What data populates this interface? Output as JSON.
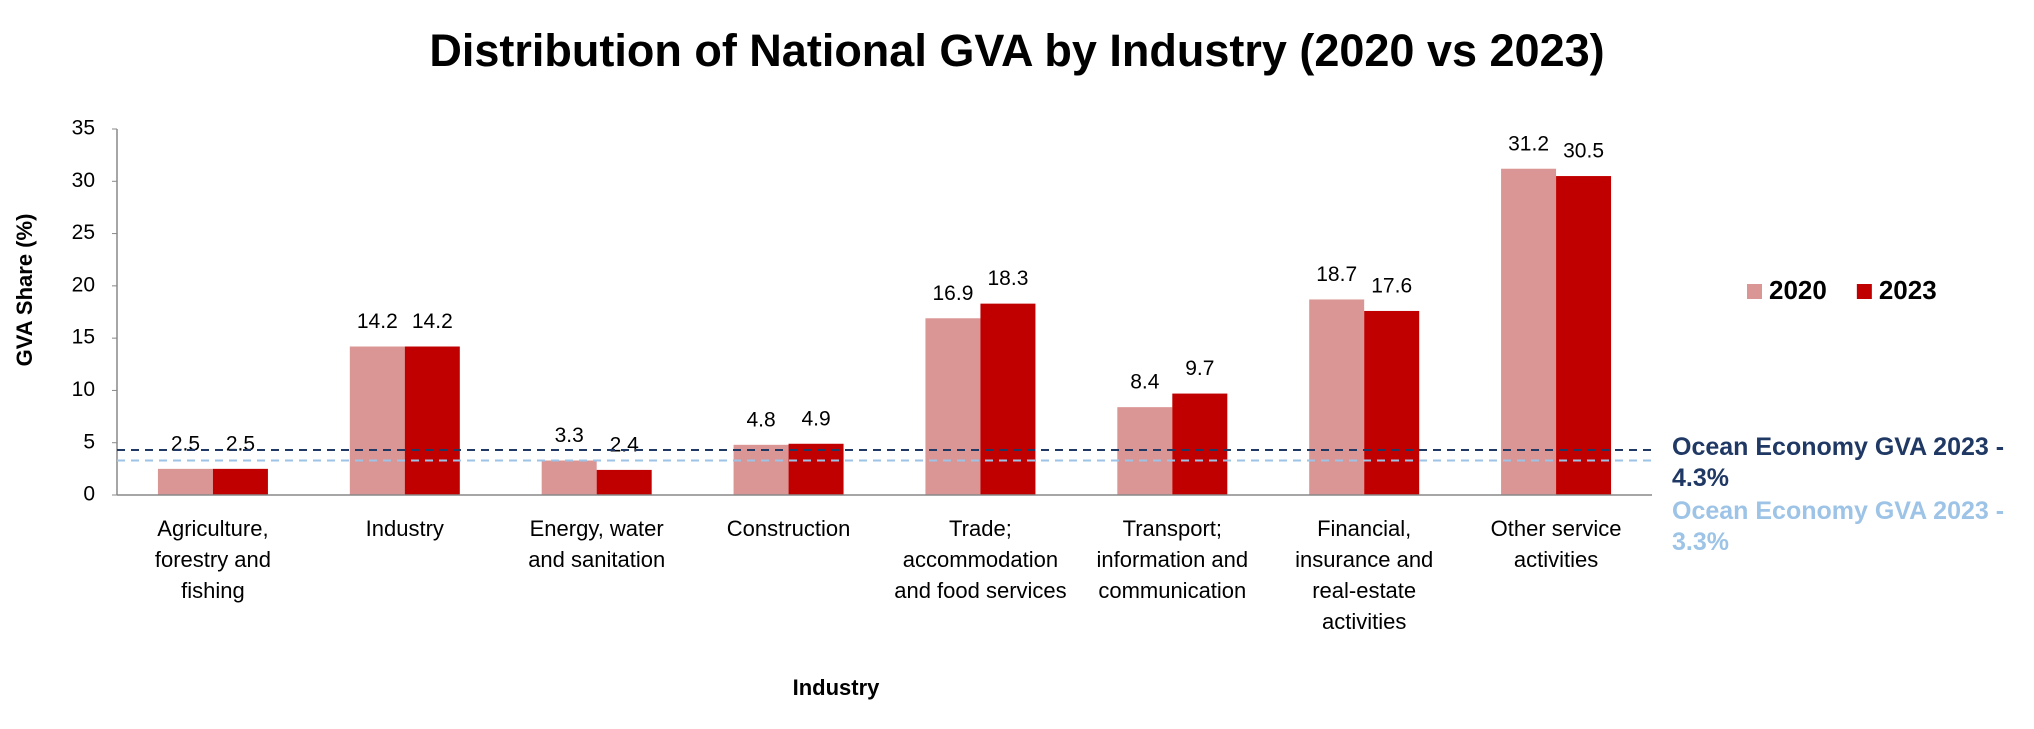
{
  "chart_data": {
    "type": "bar",
    "title": "Distribution of National GVA by Industry (2020 vs 2023)",
    "x_label": "Industry",
    "y_label": "GVA Share (%)",
    "categories": [
      "Agriculture, forestry and fishing",
      "Industry",
      "Energy, water and sanitation",
      "Construction",
      "Trade; accommodation and food services",
      "Transport; information and communication",
      "Financial, insurance and real-estate activities",
      "Other service activities"
    ],
    "series": [
      {
        "name": "2020",
        "color": "#d99694",
        "values": [
          2.5,
          14.2,
          3.3,
          4.8,
          16.9,
          8.4,
          18.7,
          31.2
        ]
      },
      {
        "name": "2023",
        "color": "#c00000",
        "values": [
          2.5,
          14.2,
          2.4,
          4.9,
          18.3,
          9.7,
          17.6,
          30.5
        ]
      }
    ],
    "reference_lines": [
      {
        "label": "Ocean Economy GVA 2023 - 4.3%",
        "value": 4.3,
        "color": "#1f3864"
      },
      {
        "label": "Ocean Economy GVA 2023 - 3.3%",
        "value": 3.3,
        "color": "#9dc3e6"
      }
    ],
    "ylim": [
      0,
      35
    ],
    "yticks": [
      0,
      5,
      10,
      15,
      20,
      25,
      30,
      35
    ],
    "legend": "right"
  }
}
